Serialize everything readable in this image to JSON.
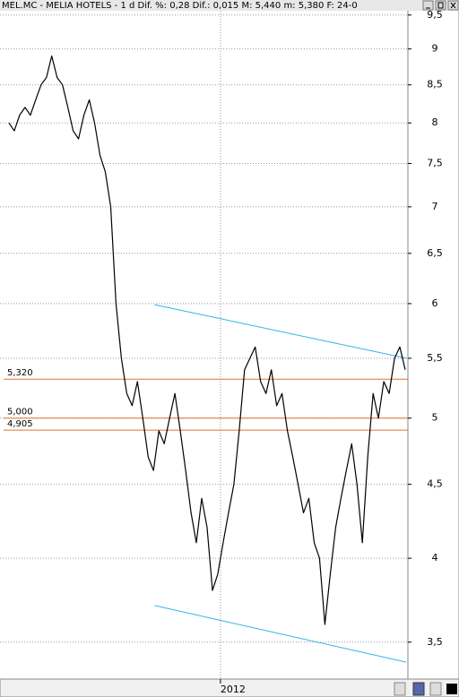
{
  "chart_data": {
    "type": "line",
    "title": "MEL.MC - MELIA HOTELS -  1 d Dif. %: 0,28 Dif.: 0,015 M: 5,440 m: 5,380 F: 24-0",
    "log_scale": true,
    "grid": true,
    "x": [
      0,
      1,
      2,
      3,
      4,
      5,
      6,
      7,
      8,
      9,
      10,
      11,
      12,
      13,
      14,
      15,
      16,
      17,
      18,
      19,
      20,
      21,
      22,
      23,
      24,
      25,
      26,
      27,
      28,
      29,
      30,
      31,
      32,
      33,
      34,
      35,
      36,
      37,
      38,
      39,
      40,
      41,
      42,
      43,
      44,
      45,
      46,
      47,
      48,
      49,
      50,
      51,
      52,
      53,
      54,
      55,
      56,
      57,
      58,
      59,
      60,
      61,
      62,
      63,
      64,
      65,
      66,
      67,
      68,
      69,
      70,
      71,
      72,
      73,
      74
    ],
    "xlim": [
      -0.83,
      74.5
    ],
    "xticks": [
      {
        "value": 39.5,
        "label": "2012"
      }
    ],
    "series": [
      {
        "color": "#000000",
        "values": [
          8.0,
          7.9,
          8.1,
          8.2,
          8.1,
          8.3,
          8.5,
          8.6,
          8.9,
          8.6,
          8.5,
          8.2,
          7.9,
          7.8,
          8.1,
          8.3,
          8.0,
          7.6,
          7.4,
          7.0,
          6.0,
          5.5,
          5.2,
          5.1,
          5.3,
          5.0,
          4.7,
          4.6,
          4.9,
          4.8,
          5.0,
          5.2,
          4.9,
          4.6,
          4.3,
          4.1,
          4.4,
          4.2,
          3.8,
          3.9,
          4.1,
          4.3,
          4.5,
          4.9,
          5.4,
          5.5,
          5.6,
          5.3,
          5.2,
          5.4,
          5.1,
          5.2,
          4.9,
          4.7,
          4.5,
          4.3,
          4.4,
          4.1,
          4.0,
          3.6,
          3.9,
          4.2,
          4.4,
          4.6,
          4.8,
          4.5,
          4.1,
          4.7,
          5.2,
          5.0,
          5.3,
          5.2,
          5.5,
          5.6,
          5.4
        ]
      }
    ],
    "trendlines": [
      {
        "color": "#33b5e5",
        "x": [
          27.2,
          74.2
        ],
        "values": [
          5.99,
          5.5
        ]
      },
      {
        "color": "#33b5e5",
        "x": [
          27.2,
          74.2
        ],
        "values": [
          3.71,
          3.39
        ]
      }
    ],
    "levels": {
      "color": "#e07030",
      "values": [
        5.32,
        5.0,
        4.905
      ],
      "value_labels": [
        "5,320",
        "5,000",
        "4,905"
      ]
    },
    "ylim": [
      3.3,
      9.73
    ],
    "yticks": [
      {
        "value": 3.5,
        "label": "3,5"
      },
      4,
      {
        "value": 4.5,
        "label": "4,5"
      },
      5,
      {
        "value": 5.5,
        "label": "5,5"
      },
      6,
      {
        "value": 6.5,
        "label": "6,5"
      },
      7,
      {
        "value": 7.5,
        "label": "7,5"
      },
      8,
      {
        "value": 8.5,
        "label": "8,5"
      },
      9,
      {
        "value": 9.5,
        "label": "9,5"
      }
    ]
  }
}
